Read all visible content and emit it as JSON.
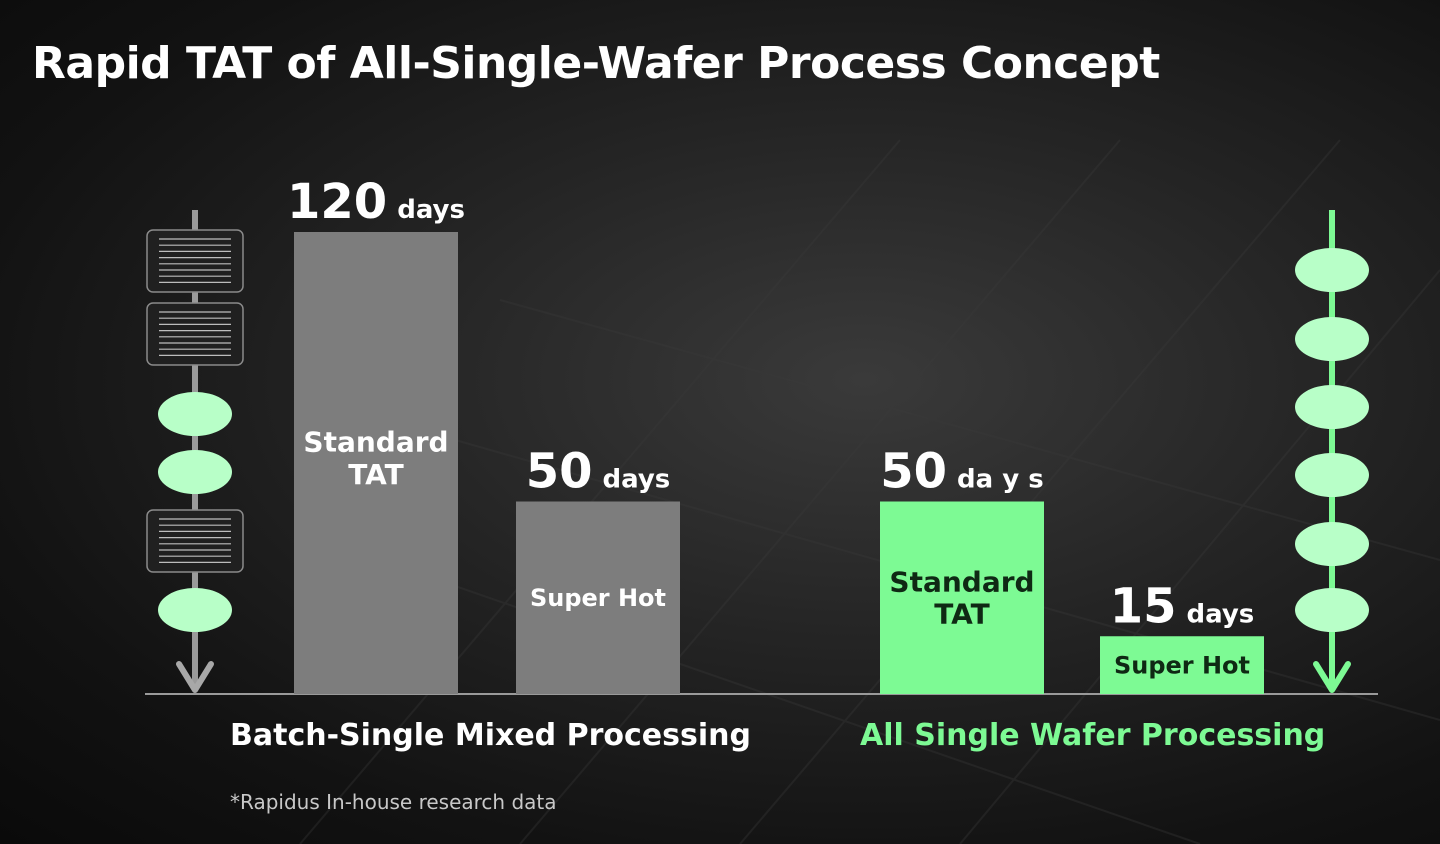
{
  "title": "Rapid TAT of All-Single-Wafer Process Concept",
  "footnote": "*Rapidus In-house research data",
  "colors": {
    "gray_bar": "#7d7d7d",
    "green_bar": "#7dfa94",
    "green_text": "#7dfa94",
    "wafer_green": "#b8ffc8"
  },
  "chart_data": {
    "type": "bar",
    "unit": "days",
    "groups": [
      {
        "label": "Batch-Single Mixed Processing",
        "bars": [
          {
            "name": "Standard TAT",
            "value": 120,
            "value_text": "120",
            "unit_text": "days"
          },
          {
            "name": "Super Hot",
            "value": 50,
            "value_text": "50",
            "unit_text": "days"
          }
        ]
      },
      {
        "label": "All Single Wafer Processing",
        "bars": [
          {
            "name": "Standard TAT",
            "value": 50,
            "value_text": "50",
            "unit_text": "da y s"
          },
          {
            "name": "Super Hot",
            "value": 15,
            "value_text": "15",
            "unit_text": "days"
          }
        ]
      }
    ]
  },
  "icons": {
    "left_flow": [
      "batch-icon",
      "batch-icon",
      "wafer-icon",
      "wafer-icon",
      "batch-icon",
      "wafer-icon"
    ],
    "right_flow": [
      "wafer-icon",
      "wafer-icon",
      "wafer-icon",
      "wafer-icon",
      "wafer-icon",
      "wafer-icon"
    ]
  }
}
